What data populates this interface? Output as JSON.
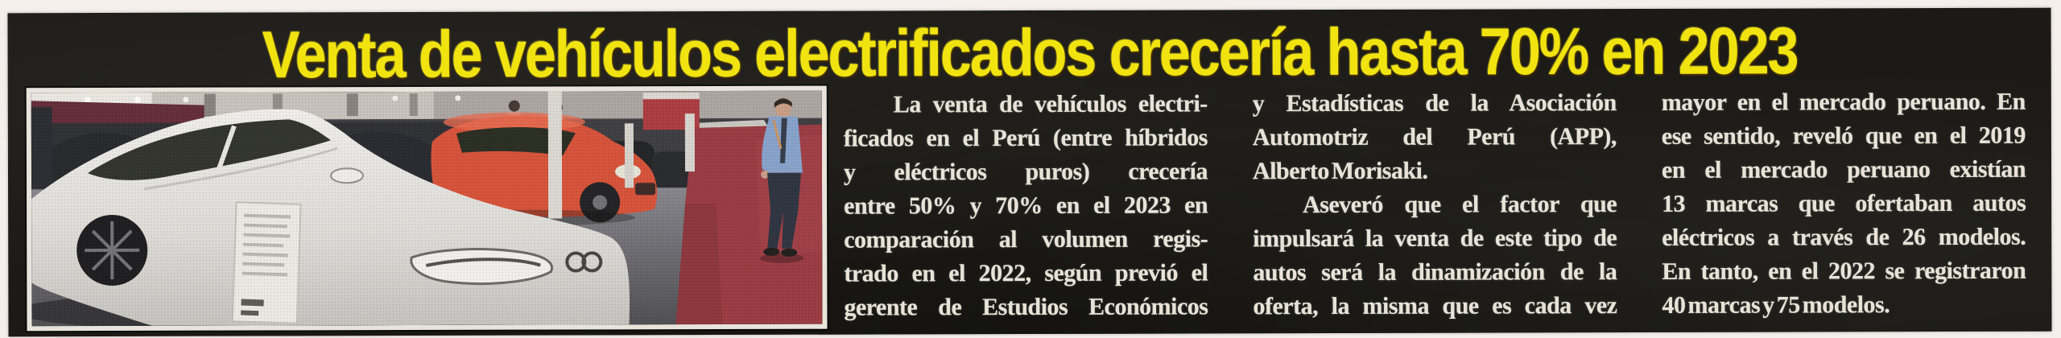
{
  "headline": {
    "text": "Venta de vehículos electrificados crecería hasta 70% en 2023"
  },
  "colors": {
    "headline_yellow": "#f1e30f",
    "sheet_black": "#1b1a16",
    "body_text_white": "#e7e3d8",
    "paper_margin": "#f5efec",
    "carpet_red": "#96323a",
    "car_red": "#d64b31",
    "shirt_blue": "#82a0cc"
  },
  "photo": {
    "name": "car-showroom-photo",
    "description": "Vehicle show floor: white sedan with price placard in foreground, red hatchback and dark cars behind, salesman in light-blue shirt walking on a red carpet"
  },
  "article": {
    "columns": [
      {
        "lines": [
          {
            "text": "La venta de vehículos electri-",
            "indent": true
          },
          {
            "text": "ficados en el Perú (entre híbridos"
          },
          {
            "text": "y eléctricos puros) crecería"
          },
          {
            "text": "entre 50% y 70% en el 2023 en"
          },
          {
            "text": "comparación al volumen regis-"
          },
          {
            "text": "trado en el 2022, según previó el"
          },
          {
            "text": "gerente de Estudios Económicos"
          }
        ]
      },
      {
        "lines": [
          {
            "text": "y Estadísticas de la Asociación"
          },
          {
            "text": "Automotriz del Perú (APP),"
          },
          {
            "text": "Alberto Morisaki.",
            "end": true
          },
          {
            "text": "Aseveró que el factor que",
            "indent": true
          },
          {
            "text": "impulsará la venta de este tipo de"
          },
          {
            "text": "autos será la dinamización de la"
          },
          {
            "text": "oferta, la misma que es cada vez"
          }
        ]
      },
      {
        "lines": [
          {
            "text": "mayor en el mercado peruano. En"
          },
          {
            "text": "ese sentido, reveló que en el 2019"
          },
          {
            "text": "en el mercado peruano existían"
          },
          {
            "text": "13 marcas que ofertaban autos"
          },
          {
            "text": "eléctricos a través de 26 modelos."
          },
          {
            "text": "En tanto, en el 2022 se registraron"
          },
          {
            "text": "40 marcas y 75 modelos.",
            "end": true
          }
        ]
      }
    ]
  }
}
